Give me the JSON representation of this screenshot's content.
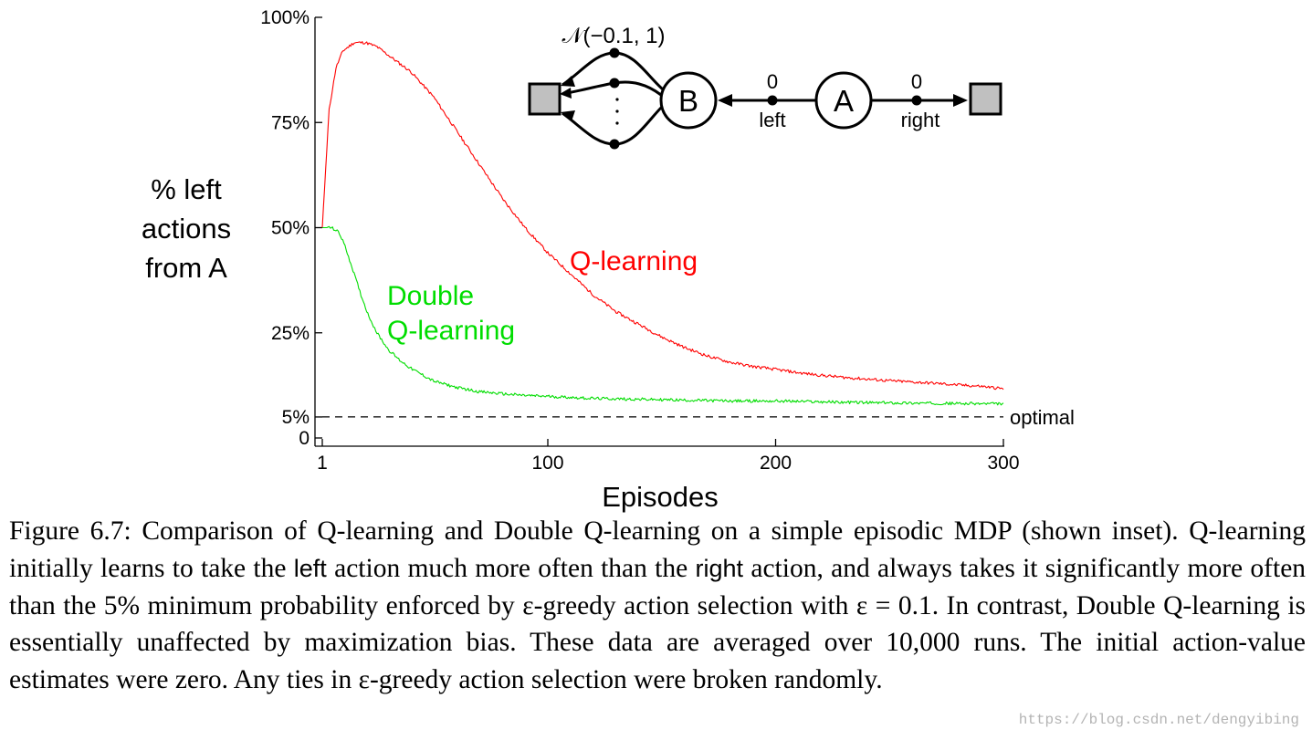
{
  "chart_data": {
    "type": "line",
    "ylabel": [
      "% left",
      "actions",
      "from A"
    ],
    "xlabel": "Episodes",
    "xlim": [
      1,
      300
    ],
    "ylim": [
      0,
      100
    ],
    "x_ticks": [
      {
        "value": 1,
        "label": "1"
      },
      {
        "value": 100,
        "label": "100"
      },
      {
        "value": 200,
        "label": "200"
      },
      {
        "value": 300,
        "label": "300"
      }
    ],
    "y_ticks": [
      {
        "value": 0,
        "label": "0"
      },
      {
        "value": 5,
        "label": "5%"
      },
      {
        "value": 25,
        "label": "25%"
      },
      {
        "value": 50,
        "label": "50%"
      },
      {
        "value": 75,
        "label": "75%"
      },
      {
        "value": 100,
        "label": "100%"
      }
    ],
    "series": [
      {
        "name": "Q-learning",
        "color": "#ff0000",
        "x": [
          1,
          4,
          7,
          10,
          15,
          20,
          25,
          30,
          40,
          50,
          60,
          70,
          80,
          90,
          100,
          110,
          120,
          130,
          140,
          150,
          160,
          170,
          180,
          190,
          200,
          210,
          220,
          230,
          240,
          250,
          260,
          270,
          280,
          290,
          300
        ],
        "y": [
          50,
          78,
          88,
          92,
          94,
          94,
          93,
          91,
          87,
          81,
          73,
          65,
          57,
          50,
          44,
          39,
          34,
          30,
          27,
          24,
          21.5,
          19.5,
          18,
          17,
          16.3,
          15.5,
          14.9,
          14.4,
          14,
          13.6,
          13.3,
          13,
          12.6,
          12.3,
          11.7
        ]
      },
      {
        "name": "Double Q-learning",
        "label_lines": [
          "Double",
          "Q-learning"
        ],
        "color": "#00dd00",
        "x": [
          1,
          5,
          8,
          10,
          12,
          15,
          18,
          21,
          25,
          30,
          35,
          40,
          50,
          60,
          70,
          80,
          90,
          100,
          120,
          140,
          160,
          180,
          200,
          220,
          240,
          260,
          280,
          300
        ],
        "y": [
          50,
          50,
          49,
          47,
          44,
          39,
          34,
          29.5,
          25,
          21,
          18.5,
          16.5,
          13.5,
          12,
          11,
          10.5,
          10.1,
          9.9,
          9.4,
          9.2,
          9,
          8.8,
          8.8,
          8.6,
          8.4,
          8.3,
          8.2,
          8.1
        ]
      },
      {
        "name": "optimal",
        "color": "#000000",
        "style": "dashed",
        "x": [
          1,
          300
        ],
        "y": [
          5,
          5
        ]
      }
    ]
  },
  "inset": {
    "distribution_label": "𝒩(−0.1, 1)",
    "state_b": "B",
    "state_a": "A",
    "left_reward": "0",
    "left_action": "left",
    "right_reward": "0",
    "right_action": "right",
    "colors": {
      "terminal": "#c0c0c0",
      "stroke": "#000000"
    }
  },
  "caption": {
    "label": "Figure 6.7:",
    "part1": "Comparison of Q-learning and Double Q-learning on a simple episodic MDP (shown inset). Q-learning initially learns to take the",
    "left_word": "left",
    "part2": "action much more often than the",
    "right_word": "right",
    "part3": "action, and always takes it significantly more often than the 5% minimum probability enforced by ε-greedy action selection with ε = 0.1. In contrast, Double Q-learning is essentially unaffected by maximization bias. These data are averaged over 10,000 runs. The initial action-value estimates were zero. Any ties in ε-greedy action selection were broken randomly."
  },
  "watermark": "https://blog.csdn.net/dengyibing"
}
